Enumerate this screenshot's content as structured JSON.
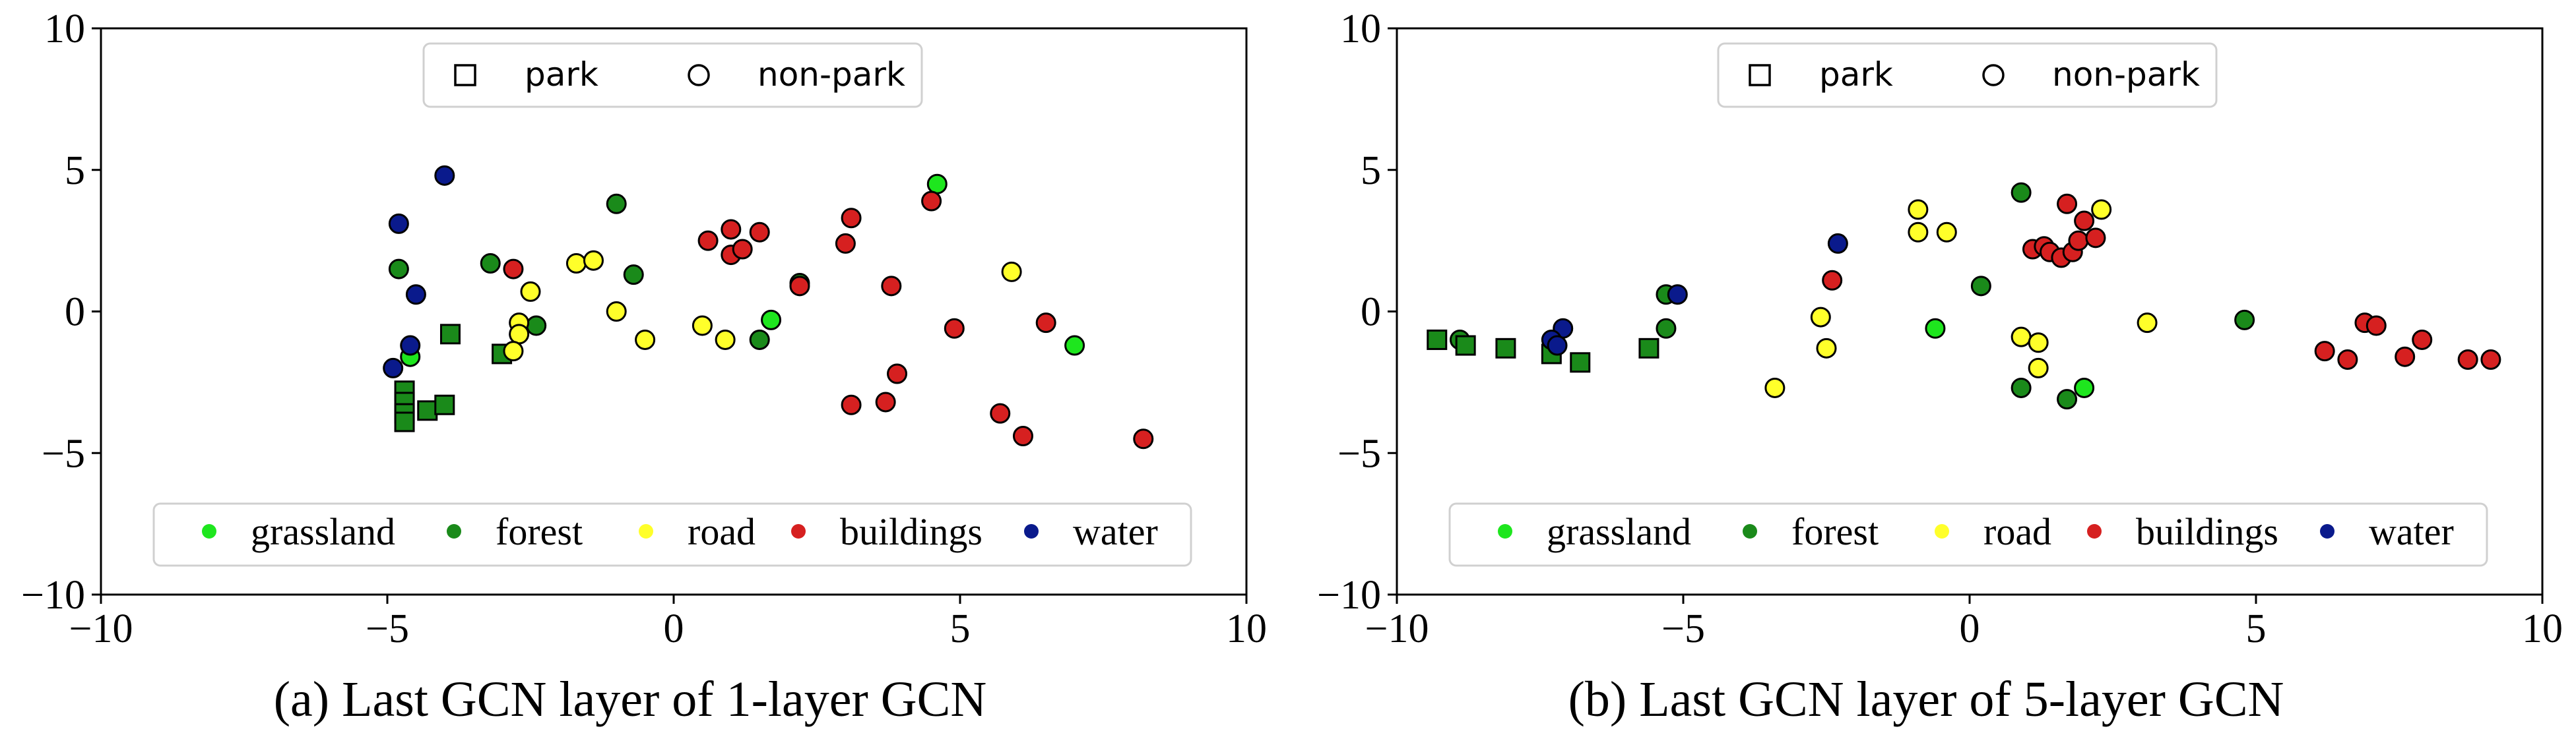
{
  "colors": {
    "grassland": "#1ee61e",
    "forest": "#1a8a1a",
    "road": "#ffff2a",
    "buildings": "#d62020",
    "water": "#0a1a8c",
    "edge": "#000000"
  },
  "legend_shapes": [
    {
      "marker": "square",
      "label": "park"
    },
    {
      "marker": "circle",
      "label": "non-park"
    }
  ],
  "legend_classes": [
    {
      "key": "grassland",
      "label": "grassland"
    },
    {
      "key": "forest",
      "label": "forest"
    },
    {
      "key": "road",
      "label": "road"
    },
    {
      "key": "buildings",
      "label": "buildings"
    },
    {
      "key": "water",
      "label": "water"
    }
  ],
  "chart_data": [
    {
      "type": "scatter",
      "caption": "(a) Last GCN layer of 1-layer GCN",
      "xlim": [
        -10,
        10
      ],
      "ylim": [
        -10,
        10
      ],
      "xticks": [
        "−10",
        "−5",
        "0",
        "5",
        "10"
      ],
      "yticks": [
        "10",
        "5",
        "0",
        "−5",
        "−10"
      ],
      "series": [
        {
          "name": "grassland",
          "marker": "circle",
          "points": [
            [
              4.6,
              4.5
            ],
            [
              -4.6,
              -1.6
            ],
            [
              1.7,
              -0.3
            ],
            [
              7.0,
              -1.2
            ]
          ]
        },
        {
          "name": "forest",
          "marker": "circle",
          "points": [
            [
              -4.8,
              1.5
            ],
            [
              -3.2,
              1.7
            ],
            [
              -1.0,
              3.8
            ],
            [
              -0.7,
              1.3
            ],
            [
              -2.4,
              -0.5
            ],
            [
              2.2,
              1.0
            ],
            [
              1.5,
              -1.0
            ]
          ]
        },
        {
          "name": "forest",
          "marker": "square",
          "points": [
            [
              -3.9,
              -0.8
            ],
            [
              -3.0,
              -1.5
            ],
            [
              -4.7,
              -2.8
            ],
            [
              -4.7,
              -3.2
            ],
            [
              -4.7,
              -3.6
            ],
            [
              -4.7,
              -3.9
            ],
            [
              -4.3,
              -3.5
            ],
            [
              -4.0,
              -3.3
            ]
          ]
        },
        {
          "name": "road",
          "marker": "circle",
          "points": [
            [
              -1.7,
              1.7
            ],
            [
              -1.4,
              1.8
            ],
            [
              -2.5,
              0.7
            ],
            [
              -2.7,
              -0.4
            ],
            [
              -2.7,
              -0.8
            ],
            [
              -2.8,
              -1.4
            ],
            [
              -1.0,
              0.0
            ],
            [
              -0.5,
              -1.0
            ],
            [
              0.9,
              -1.0
            ],
            [
              0.5,
              -0.5
            ],
            [
              5.9,
              1.4
            ]
          ]
        },
        {
          "name": "buildings",
          "marker": "circle",
          "points": [
            [
              -2.8,
              1.5
            ],
            [
              0.6,
              2.5
            ],
            [
              1.0,
              2.9
            ],
            [
              1.0,
              2.0
            ],
            [
              1.2,
              2.2
            ],
            [
              1.5,
              2.8
            ],
            [
              2.2,
              0.9
            ],
            [
              3.0,
              2.4
            ],
            [
              3.1,
              3.3
            ],
            [
              4.5,
              3.9
            ],
            [
              3.8,
              0.9
            ],
            [
              4.9,
              -0.6
            ],
            [
              6.5,
              -0.4
            ],
            [
              3.1,
              -3.3
            ],
            [
              3.7,
              -3.2
            ],
            [
              3.9,
              -2.2
            ],
            [
              5.7,
              -3.6
            ],
            [
              6.1,
              -4.4
            ],
            [
              8.2,
              -4.5
            ]
          ]
        },
        {
          "name": "water",
          "marker": "circle",
          "points": [
            [
              -4.0,
              4.8
            ],
            [
              -4.8,
              3.1
            ],
            [
              -4.5,
              0.6
            ],
            [
              -4.6,
              -1.2
            ],
            [
              -4.9,
              -2.0
            ]
          ]
        }
      ]
    },
    {
      "type": "scatter",
      "caption": "(b) Last GCN layer of 5-layer GCN",
      "xlim": [
        -10,
        10
      ],
      "ylim": [
        -10,
        10
      ],
      "xticks": [
        "−10",
        "−5",
        "0",
        "5",
        "10"
      ],
      "yticks": [
        "10",
        "5",
        "0",
        "−5",
        "−10"
      ],
      "series": [
        {
          "name": "grassland",
          "marker": "circle",
          "points": [
            [
              -0.6,
              -0.6
            ],
            [
              2.0,
              -2.7
            ]
          ]
        },
        {
          "name": "forest",
          "marker": "circle",
          "points": [
            [
              -8.9,
              -1.0
            ],
            [
              -5.3,
              0.6
            ],
            [
              -5.3,
              -0.6
            ],
            [
              0.9,
              4.2
            ],
            [
              0.2,
              0.9
            ],
            [
              4.8,
              -0.3
            ],
            [
              0.9,
              -2.7
            ],
            [
              1.7,
              -3.1
            ]
          ]
        },
        {
          "name": "forest",
          "marker": "square",
          "points": [
            [
              -9.3,
              -1.0
            ],
            [
              -8.8,
              -1.2
            ],
            [
              -8.1,
              -1.3
            ],
            [
              -7.3,
              -1.5
            ],
            [
              -6.8,
              -1.8
            ],
            [
              -5.6,
              -1.3
            ]
          ]
        },
        {
          "name": "road",
          "marker": "circle",
          "points": [
            [
              -0.9,
              3.6
            ],
            [
              -0.9,
              2.8
            ],
            [
              -0.4,
              2.8
            ],
            [
              2.3,
              3.6
            ],
            [
              -2.6,
              -0.2
            ],
            [
              -2.5,
              -1.3
            ],
            [
              -3.4,
              -2.7
            ],
            [
              0.9,
              -0.9
            ],
            [
              1.2,
              -1.1
            ],
            [
              1.2,
              -2.0
            ],
            [
              3.1,
              -0.4
            ]
          ]
        },
        {
          "name": "buildings",
          "marker": "circle",
          "points": [
            [
              1.1,
              2.2
            ],
            [
              1.3,
              2.3
            ],
            [
              1.4,
              2.1
            ],
            [
              1.6,
              1.9
            ],
            [
              1.8,
              2.1
            ],
            [
              1.9,
              2.5
            ],
            [
              2.0,
              3.2
            ],
            [
              2.2,
              2.6
            ],
            [
              1.7,
              3.8
            ],
            [
              -2.4,
              1.1
            ],
            [
              6.2,
              -1.4
            ],
            [
              6.6,
              -1.7
            ],
            [
              6.9,
              -0.4
            ],
            [
              7.1,
              -0.5
            ],
            [
              7.6,
              -1.6
            ],
            [
              7.9,
              -1.0
            ],
            [
              8.7,
              -1.7
            ],
            [
              9.1,
              -1.7
            ]
          ]
        },
        {
          "name": "water",
          "marker": "circle",
          "points": [
            [
              -2.3,
              2.4
            ],
            [
              -5.1,
              0.6
            ],
            [
              -7.1,
              -0.6
            ],
            [
              -7.3,
              -1.0
            ],
            [
              -7.2,
              -1.2
            ]
          ]
        }
      ]
    }
  ]
}
